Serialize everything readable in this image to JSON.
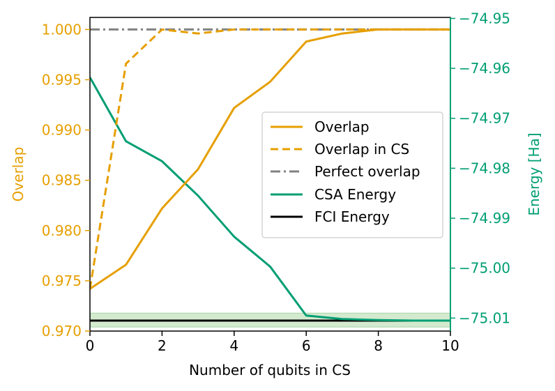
{
  "chart_data": {
    "type": "line",
    "title": "",
    "xlabel": "Number of qubits in CS",
    "ylabel_left": "Overlap",
    "ylabel_right": "Energy [Ha]",
    "xlim": [
      0,
      10
    ],
    "ylim_left": [
      0.97,
      1.0012
    ],
    "ylim_right": [
      -75.0126,
      -74.9498
    ],
    "x_ticks": [
      0,
      2,
      4,
      6,
      8,
      10
    ],
    "x_tick_labels": [
      "0",
      "2",
      "4",
      "6",
      "8",
      "10"
    ],
    "left_ticks": [
      0.97,
      0.975,
      0.98,
      0.985,
      0.99,
      0.995,
      1.0
    ],
    "left_tick_labels": [
      "0.970",
      "0.975",
      "0.980",
      "0.985",
      "0.990",
      "0.995",
      "1.000"
    ],
    "right_ticks": [
      -75.01,
      -75.0,
      -74.99,
      -74.98,
      -74.97,
      -74.96,
      -74.95
    ],
    "right_tick_labels": [
      "−75.01",
      "−75.00",
      "−74.99",
      "−74.98",
      "−74.97",
      "−74.96",
      "−74.95"
    ],
    "legend_position": "center-right",
    "colors": {
      "overlap": "#E69F00",
      "energy": "#009E73",
      "perfect": "#808080",
      "fci": "#000000",
      "band": "#A8D5A0"
    },
    "series": [
      {
        "name": "Overlap",
        "axis": "left",
        "style": "solid",
        "color": "#E69F00",
        "x": [
          0,
          1,
          2,
          3,
          4,
          5,
          6,
          7,
          8,
          9,
          10
        ],
        "values": [
          0.9742,
          0.9766,
          0.9822,
          0.9861,
          0.9922,
          0.9948,
          0.9988,
          0.9996,
          1.0,
          1.0,
          1.0
        ]
      },
      {
        "name": "Overlap in CS",
        "axis": "left",
        "style": "dashed",
        "color": "#E69F00",
        "x": [
          0,
          1,
          2,
          3,
          4,
          5,
          6,
          7,
          8,
          9,
          10
        ],
        "values": [
          0.9742,
          0.9966,
          1.0,
          0.9996,
          1.0,
          1.0,
          1.0,
          1.0,
          1.0,
          1.0,
          1.0
        ]
      },
      {
        "name": "Perfect overlap",
        "axis": "left",
        "style": "dashdot",
        "color": "#808080",
        "x": [
          0,
          10
        ],
        "values": [
          1.0,
          1.0
        ]
      },
      {
        "name": "CSA Energy",
        "axis": "right",
        "style": "solid",
        "color": "#009E73",
        "x": [
          0,
          1,
          2,
          3,
          4,
          5,
          6,
          7,
          8,
          9,
          10
        ],
        "values": [
          -74.9618,
          -74.9746,
          -74.9786,
          -74.9855,
          -74.9937,
          -74.9997,
          -75.0095,
          -75.0102,
          -75.0104,
          -75.0105,
          -75.0105
        ]
      },
      {
        "name": "FCI Energy",
        "axis": "right",
        "style": "solid",
        "color": "#000000",
        "x": [
          0,
          10
        ],
        "values": [
          -75.0105,
          -75.0105
        ]
      }
    ],
    "band": {
      "axis": "right",
      "lower": -75.0118,
      "upper": -75.009,
      "color": "#A8D5A0"
    },
    "legend": [
      "Overlap",
      "Overlap in CS",
      "Perfect overlap",
      "CSA Energy",
      "FCI Energy"
    ]
  }
}
